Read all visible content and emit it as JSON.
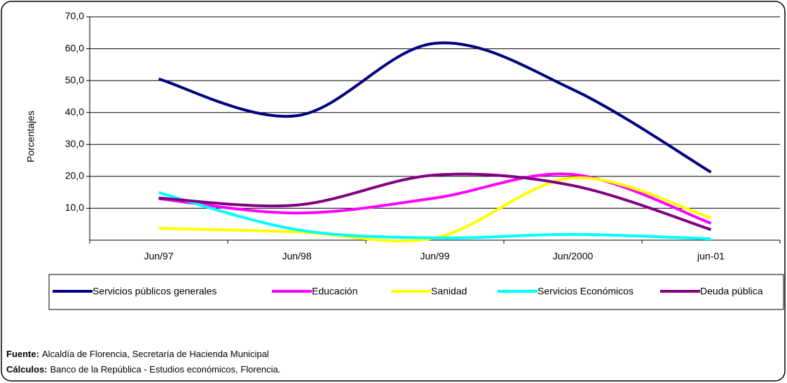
{
  "chart_data": {
    "type": "line",
    "y_label": "Porcentajes",
    "categories": [
      "Jun/97",
      "Jun/98",
      "Jun/99",
      "Jun/2000",
      "jun-01"
    ],
    "series": [
      {
        "name": "Servicios públicos generales",
        "color": "#000080",
        "values": [
          50.5,
          39.0,
          61.7,
          47.2,
          21.3
        ]
      },
      {
        "name": "Educación",
        "color": "#ff00ff",
        "values": [
          13.0,
          8.5,
          13.2,
          20.6,
          5.3
        ]
      },
      {
        "name": "Sanidad",
        "color": "#ffff00",
        "values": [
          3.7,
          2.6,
          0.7,
          19.5,
          7.0
        ]
      },
      {
        "name": "Servicios Económicos",
        "color": "#00ffff",
        "values": [
          14.9,
          3.3,
          0.7,
          1.8,
          0.4
        ]
      },
      {
        "name": "Deuda pública",
        "color": "#800080",
        "values": [
          13.2,
          11.0,
          20.4,
          17.1,
          3.3
        ]
      }
    ],
    "ylim": [
      0,
      70
    ],
    "yticks": [
      {
        "value": 10,
        "label": "10,0"
      },
      {
        "value": 20,
        "label": "20,0"
      },
      {
        "value": 30,
        "label": "30,0"
      },
      {
        "value": 40,
        "label": "40,0"
      },
      {
        "value": 50,
        "label": "50,0"
      },
      {
        "value": 60,
        "label": "60,0"
      },
      {
        "value": 70,
        "label": "70,0"
      }
    ],
    "grid": true,
    "smooth": true,
    "legend": "bottom",
    "notes": [
      {
        "label": "Fuente:",
        "text": "Alcaldía de Florencia, Secretaría de Hacienda Municipal"
      },
      {
        "label": "Cálculos:",
        "text": "Banco de la República - Estudios económicos,  Florencia."
      }
    ]
  }
}
